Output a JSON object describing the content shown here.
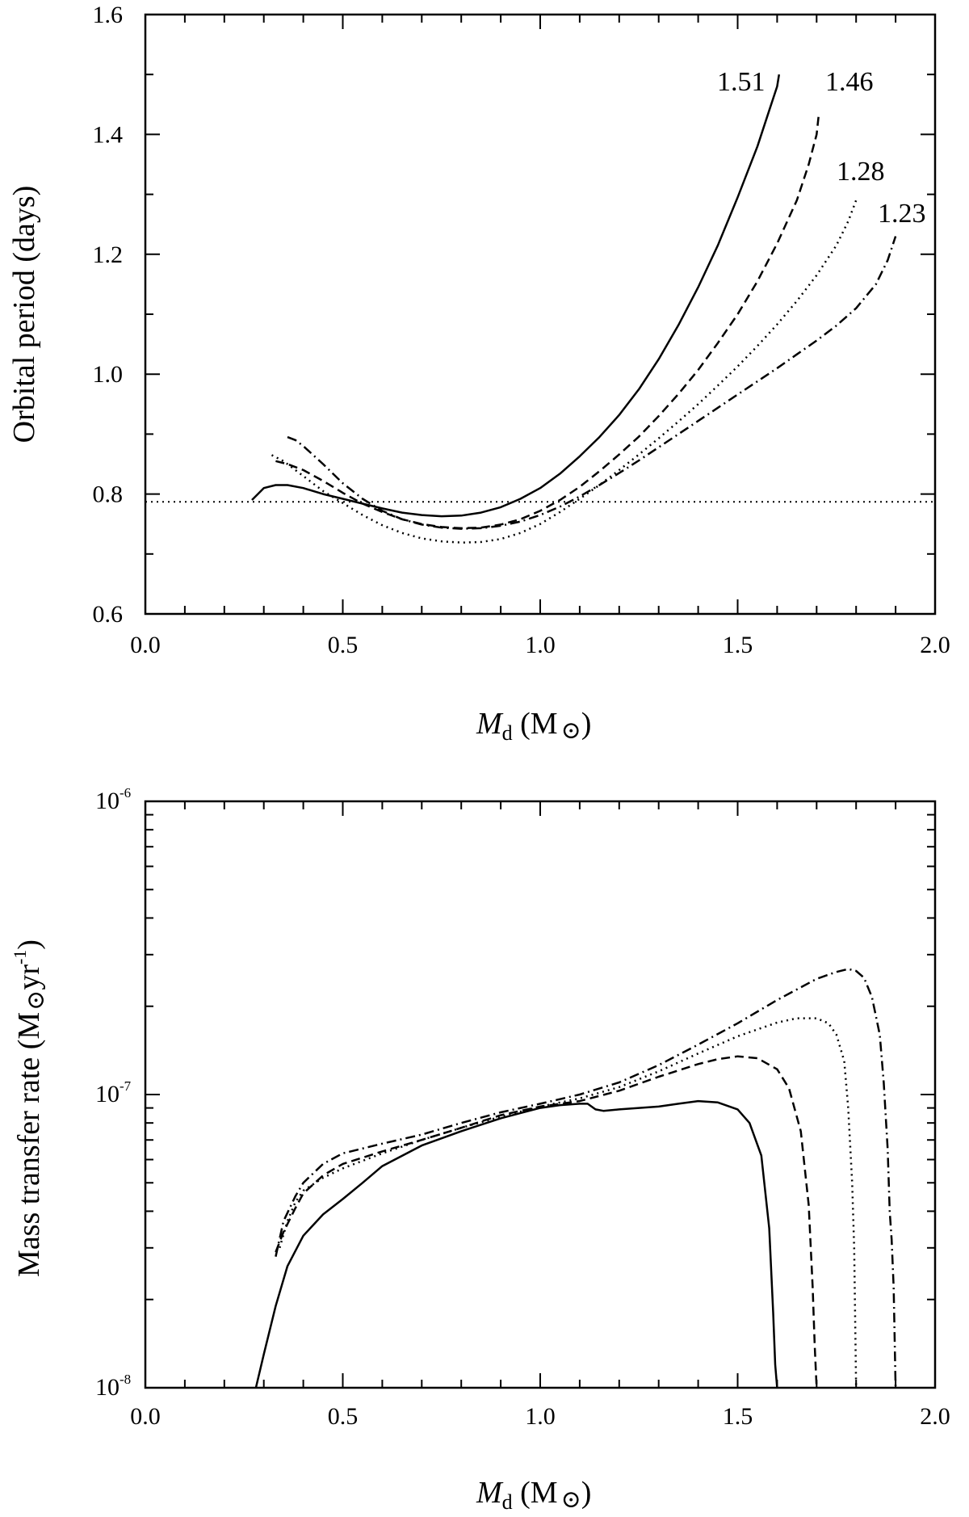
{
  "chart_data": [
    {
      "id": "top",
      "type": "line",
      "ylabel": "Orbital period (days)",
      "xlabel_italic": "M",
      "xlabel_sub": "d",
      "xlabel_unit_open": " (M",
      "xlabel_unit_close": ")",
      "xlim": [
        0.0,
        2.0
      ],
      "ylim": [
        0.6,
        1.6
      ],
      "x_ticks": [
        "0.0",
        "0.5",
        "1.0",
        "1.5",
        "2.0"
      ],
      "y_ticks": [
        "0.6",
        "0.8",
        "1.0",
        "1.2",
        "1.4",
        "1.6"
      ],
      "reference_line": {
        "y": 0.787,
        "style": "dotted"
      },
      "series": [
        {
          "name": "1.51",
          "style": "solid",
          "x": [
            0.27,
            0.3,
            0.33,
            0.36,
            0.4,
            0.45,
            0.5,
            0.55,
            0.6,
            0.65,
            0.7,
            0.75,
            0.8,
            0.85,
            0.9,
            0.95,
            1.0,
            1.05,
            1.1,
            1.15,
            1.2,
            1.25,
            1.3,
            1.35,
            1.4,
            1.45,
            1.5,
            1.55,
            1.58,
            1.6,
            1.605
          ],
          "y": [
            0.79,
            0.81,
            0.815,
            0.815,
            0.81,
            0.8,
            0.792,
            0.784,
            0.776,
            0.769,
            0.765,
            0.763,
            0.764,
            0.769,
            0.778,
            0.792,
            0.81,
            0.834,
            0.863,
            0.895,
            0.932,
            0.975,
            1.025,
            1.082,
            1.145,
            1.215,
            1.295,
            1.38,
            1.44,
            1.48,
            1.5
          ]
        },
        {
          "name": "1.46",
          "style": "dashed",
          "x": [
            0.33,
            0.36,
            0.4,
            0.45,
            0.5,
            0.55,
            0.6,
            0.65,
            0.7,
            0.75,
            0.8,
            0.85,
            0.9,
            0.95,
            1.0,
            1.05,
            1.1,
            1.15,
            1.2,
            1.25,
            1.3,
            1.35,
            1.4,
            1.45,
            1.5,
            1.55,
            1.6,
            1.65,
            1.68,
            1.7,
            1.705
          ],
          "y": [
            0.855,
            0.85,
            0.84,
            0.822,
            0.802,
            0.784,
            0.77,
            0.758,
            0.75,
            0.745,
            0.743,
            0.744,
            0.749,
            0.758,
            0.772,
            0.79,
            0.812,
            0.838,
            0.866,
            0.896,
            0.93,
            0.967,
            1.007,
            1.052,
            1.1,
            1.155,
            1.218,
            1.29,
            1.35,
            1.4,
            1.43
          ]
        },
        {
          "name": "1.28",
          "style": "dotted",
          "x": [
            0.32,
            0.35,
            0.4,
            0.45,
            0.5,
            0.55,
            0.6,
            0.65,
            0.7,
            0.75,
            0.8,
            0.85,
            0.9,
            0.95,
            1.0,
            1.05,
            1.1,
            1.15,
            1.2,
            1.25,
            1.3,
            1.35,
            1.4,
            1.45,
            1.5,
            1.55,
            1.6,
            1.65,
            1.7,
            1.75,
            1.78,
            1.8
          ],
          "y": [
            0.865,
            0.855,
            0.83,
            0.805,
            0.785,
            0.765,
            0.748,
            0.735,
            0.726,
            0.721,
            0.719,
            0.72,
            0.725,
            0.735,
            0.75,
            0.77,
            0.792,
            0.815,
            0.84,
            0.866,
            0.893,
            0.921,
            0.95,
            0.981,
            1.013,
            1.047,
            1.083,
            1.122,
            1.165,
            1.215,
            1.255,
            1.29
          ]
        },
        {
          "name": "1.23",
          "style": "dashdot",
          "x": [
            0.36,
            0.38,
            0.4,
            0.45,
            0.5,
            0.55,
            0.6,
            0.65,
            0.7,
            0.75,
            0.8,
            0.85,
            0.9,
            0.95,
            1.0,
            1.05,
            1.1,
            1.15,
            1.2,
            1.25,
            1.3,
            1.35,
            1.4,
            1.45,
            1.5,
            1.55,
            1.6,
            1.65,
            1.7,
            1.75,
            1.8,
            1.85,
            1.88,
            1.9
          ],
          "y": [
            0.895,
            0.89,
            0.88,
            0.85,
            0.818,
            0.792,
            0.772,
            0.758,
            0.749,
            0.744,
            0.742,
            0.743,
            0.747,
            0.754,
            0.765,
            0.779,
            0.796,
            0.815,
            0.835,
            0.856,
            0.878,
            0.9,
            0.922,
            0.944,
            0.966,
            0.988,
            1.01,
            1.033,
            1.056,
            1.081,
            1.11,
            1.15,
            1.19,
            1.23
          ]
        }
      ],
      "annotations": [
        "1.51",
        "1.46",
        "1.28",
        "1.23"
      ]
    },
    {
      "id": "bottom",
      "type": "line",
      "yscale": "log",
      "ylabel_text": "Mass transfer rate (M",
      "ylabel_unit": "yr",
      "ylabel_exp": "-1",
      "ylabel_close": ")",
      "xlabel_italic": "M",
      "xlabel_sub": "d",
      "xlabel_unit_open": " (M",
      "xlabel_unit_close": ")",
      "xlim": [
        0.0,
        2.0
      ],
      "ylim": [
        1e-08,
        1e-06
      ],
      "x_ticks": [
        "0.0",
        "0.5",
        "1.0",
        "1.5",
        "2.0"
      ],
      "y_ticks": [
        {
          "base": "10",
          "exp": "-8"
        },
        {
          "base": "10",
          "exp": "-7"
        },
        {
          "base": "10",
          "exp": "-6"
        }
      ],
      "series": [
        {
          "name": "1.51",
          "style": "solid",
          "x": [
            0.28,
            0.3,
            0.33,
            0.36,
            0.4,
            0.45,
            0.5,
            0.55,
            0.6,
            0.7,
            0.8,
            0.9,
            1.0,
            1.05,
            1.1,
            1.12,
            1.14,
            1.16,
            1.2,
            1.25,
            1.3,
            1.35,
            1.4,
            1.45,
            1.5,
            1.53,
            1.56,
            1.58,
            1.59,
            1.595,
            1.6
          ],
          "y": [
            1e-08,
            1.3e-08,
            1.9e-08,
            2.6e-08,
            3.3e-08,
            3.9e-08,
            4.4e-08,
            5e-08,
            5.7e-08,
            6.7e-08,
            7.5e-08,
            8.3e-08,
            9e-08,
            9.2e-08,
            9.3e-08,
            9.3e-08,
            8.9e-08,
            8.8e-08,
            8.9e-08,
            9e-08,
            9.1e-08,
            9.3e-08,
            9.5e-08,
            9.4e-08,
            8.9e-08,
            8e-08,
            6.2e-08,
            3.5e-08,
            1.8e-08,
            1.2e-08,
            1e-08
          ]
        },
        {
          "name": "1.46",
          "style": "dashed",
          "x": [
            0.33,
            0.35,
            0.38,
            0.4,
            0.45,
            0.5,
            0.6,
            0.7,
            0.8,
            0.9,
            1.0,
            1.1,
            1.2,
            1.3,
            1.4,
            1.45,
            1.5,
            1.55,
            1.6,
            1.63,
            1.66,
            1.68,
            1.69,
            1.695,
            1.7
          ],
          "y": [
            2.9e-08,
            3.4e-08,
            4.1e-08,
            4.6e-08,
            5.3e-08,
            5.8e-08,
            6.4e-08,
            7e-08,
            7.7e-08,
            8.5e-08,
            9.1e-08,
            9.5e-08,
            1.03e-07,
            1.15e-07,
            1.27e-07,
            1.32e-07,
            1.35e-07,
            1.33e-07,
            1.22e-07,
            1.05e-07,
            7.5e-08,
            4.2e-08,
            2.2e-08,
            1.4e-08,
            1e-08
          ]
        },
        {
          "name": "1.28",
          "style": "dotted",
          "x": [
            0.34,
            0.36,
            0.38,
            0.4,
            0.45,
            0.5,
            0.6,
            0.7,
            0.8,
            0.9,
            1.0,
            1.1,
            1.2,
            1.3,
            1.4,
            1.5,
            1.6,
            1.65,
            1.7,
            1.73,
            1.75,
            1.77,
            1.78,
            1.79,
            1.795,
            1.8
          ],
          "y": [
            3e-08,
            3.7e-08,
            4.3e-08,
            4.7e-08,
            5.2e-08,
            5.6e-08,
            6.3e-08,
            7e-08,
            7.7e-08,
            8.4e-08,
            9.1e-08,
            9.7e-08,
            1.06e-07,
            1.2e-07,
            1.38e-07,
            1.58e-07,
            1.76e-07,
            1.82e-07,
            1.82e-07,
            1.75e-07,
            1.6e-07,
            1.3e-07,
            9e-08,
            5e-08,
            3e-08,
            1e-08
          ]
        },
        {
          "name": "1.23",
          "style": "dashdot",
          "x": [
            0.33,
            0.35,
            0.38,
            0.4,
            0.45,
            0.5,
            0.6,
            0.7,
            0.8,
            0.9,
            1.0,
            1.1,
            1.2,
            1.3,
            1.4,
            1.5,
            1.6,
            1.7,
            1.75,
            1.78,
            1.8,
            1.82,
            1.84,
            1.86,
            1.87,
            1.88,
            1.885,
            1.89,
            1.895,
            1.9
          ],
          "y": [
            2.8e-08,
            3.7e-08,
            4.5e-08,
            5e-08,
            5.8e-08,
            6.3e-08,
            6.8e-08,
            7.3e-08,
            8e-08,
            8.7e-08,
            9.3e-08,
            1e-07,
            1.1e-07,
            1.26e-07,
            1.48e-07,
            1.75e-07,
            2.1e-07,
            2.48e-07,
            2.62e-07,
            2.68e-07,
            2.64e-07,
            2.5e-07,
            2.15e-07,
            1.6e-07,
            1.1e-07,
            6.5e-08,
            4e-08,
            3.2e-08,
            2.2e-08,
            1e-08
          ]
        }
      ]
    }
  ]
}
